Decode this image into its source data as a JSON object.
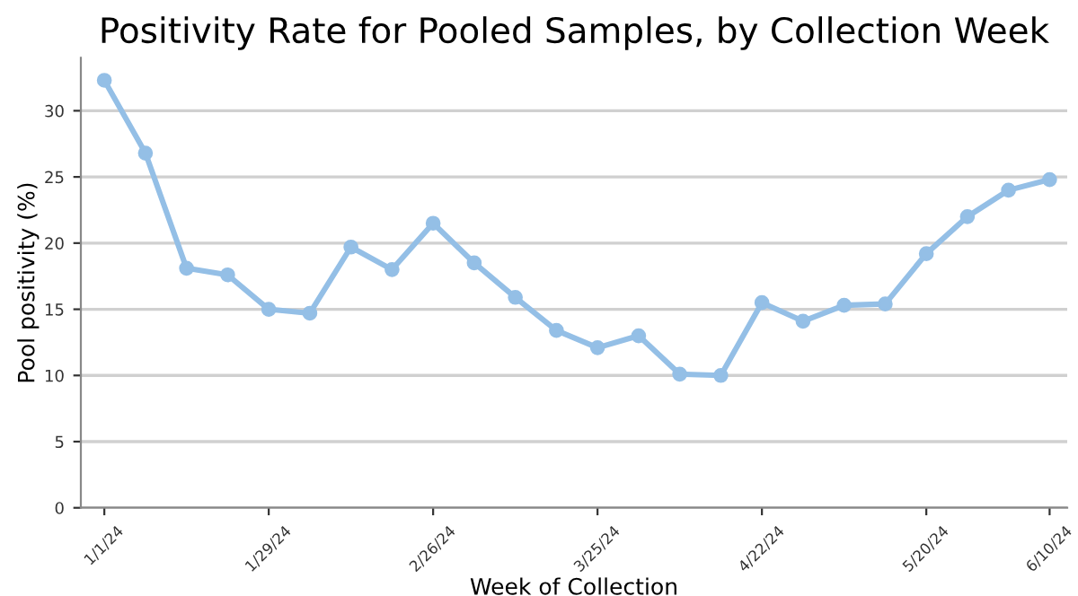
{
  "chart_data": {
    "type": "line",
    "title": "Positivity Rate for Pooled Samples, by Collection Week",
    "xlabel": "Week of Collection",
    "ylabel": "Pool positivity (%)",
    "x": [
      "2024-01-01",
      "2024-01-08",
      "2024-01-15",
      "2024-01-22",
      "2024-01-29",
      "2024-02-05",
      "2024-02-12",
      "2024-02-19",
      "2024-02-26",
      "2024-03-04",
      "2024-03-11",
      "2024-03-18",
      "2024-03-25",
      "2024-04-01",
      "2024-04-08",
      "2024-04-15",
      "2024-04-22",
      "2024-04-29",
      "2024-05-06",
      "2024-05-13",
      "2024-05-20",
      "2024-05-27",
      "2024-06-03",
      "2024-06-10"
    ],
    "series": [
      {
        "color": "#94bfe6",
        "values": [
          32.3,
          26.8,
          18.1,
          17.6,
          15.0,
          14.7,
          19.7,
          18.0,
          21.5,
          18.5,
          15.9,
          13.4,
          12.1,
          13.0,
          10.1,
          10.0,
          15.5,
          14.1,
          15.3,
          15.4,
          19.2,
          22.0,
          24.0,
          24.8
        ]
      }
    ],
    "xlim": [
      "2023-12-28",
      "2024-06-13"
    ],
    "xticks": [
      {
        "value": "2024-01-01",
        "label": "1/1/24"
      },
      {
        "value": "2024-01-29",
        "label": "1/29/24"
      },
      {
        "value": "2024-02-26",
        "label": "2/26/24"
      },
      {
        "value": "2024-03-25",
        "label": "3/25/24"
      },
      {
        "value": "2024-04-22",
        "label": "4/22/24"
      },
      {
        "value": "2024-05-20",
        "label": "5/20/24"
      },
      {
        "value": "2024-06-10",
        "label": "6/10/24"
      }
    ],
    "ylim": [
      0,
      34
    ],
    "yticks": [
      0,
      5,
      10,
      15,
      20,
      25,
      30
    ],
    "grid": "y",
    "marker": "circle",
    "line_style": "solid"
  }
}
